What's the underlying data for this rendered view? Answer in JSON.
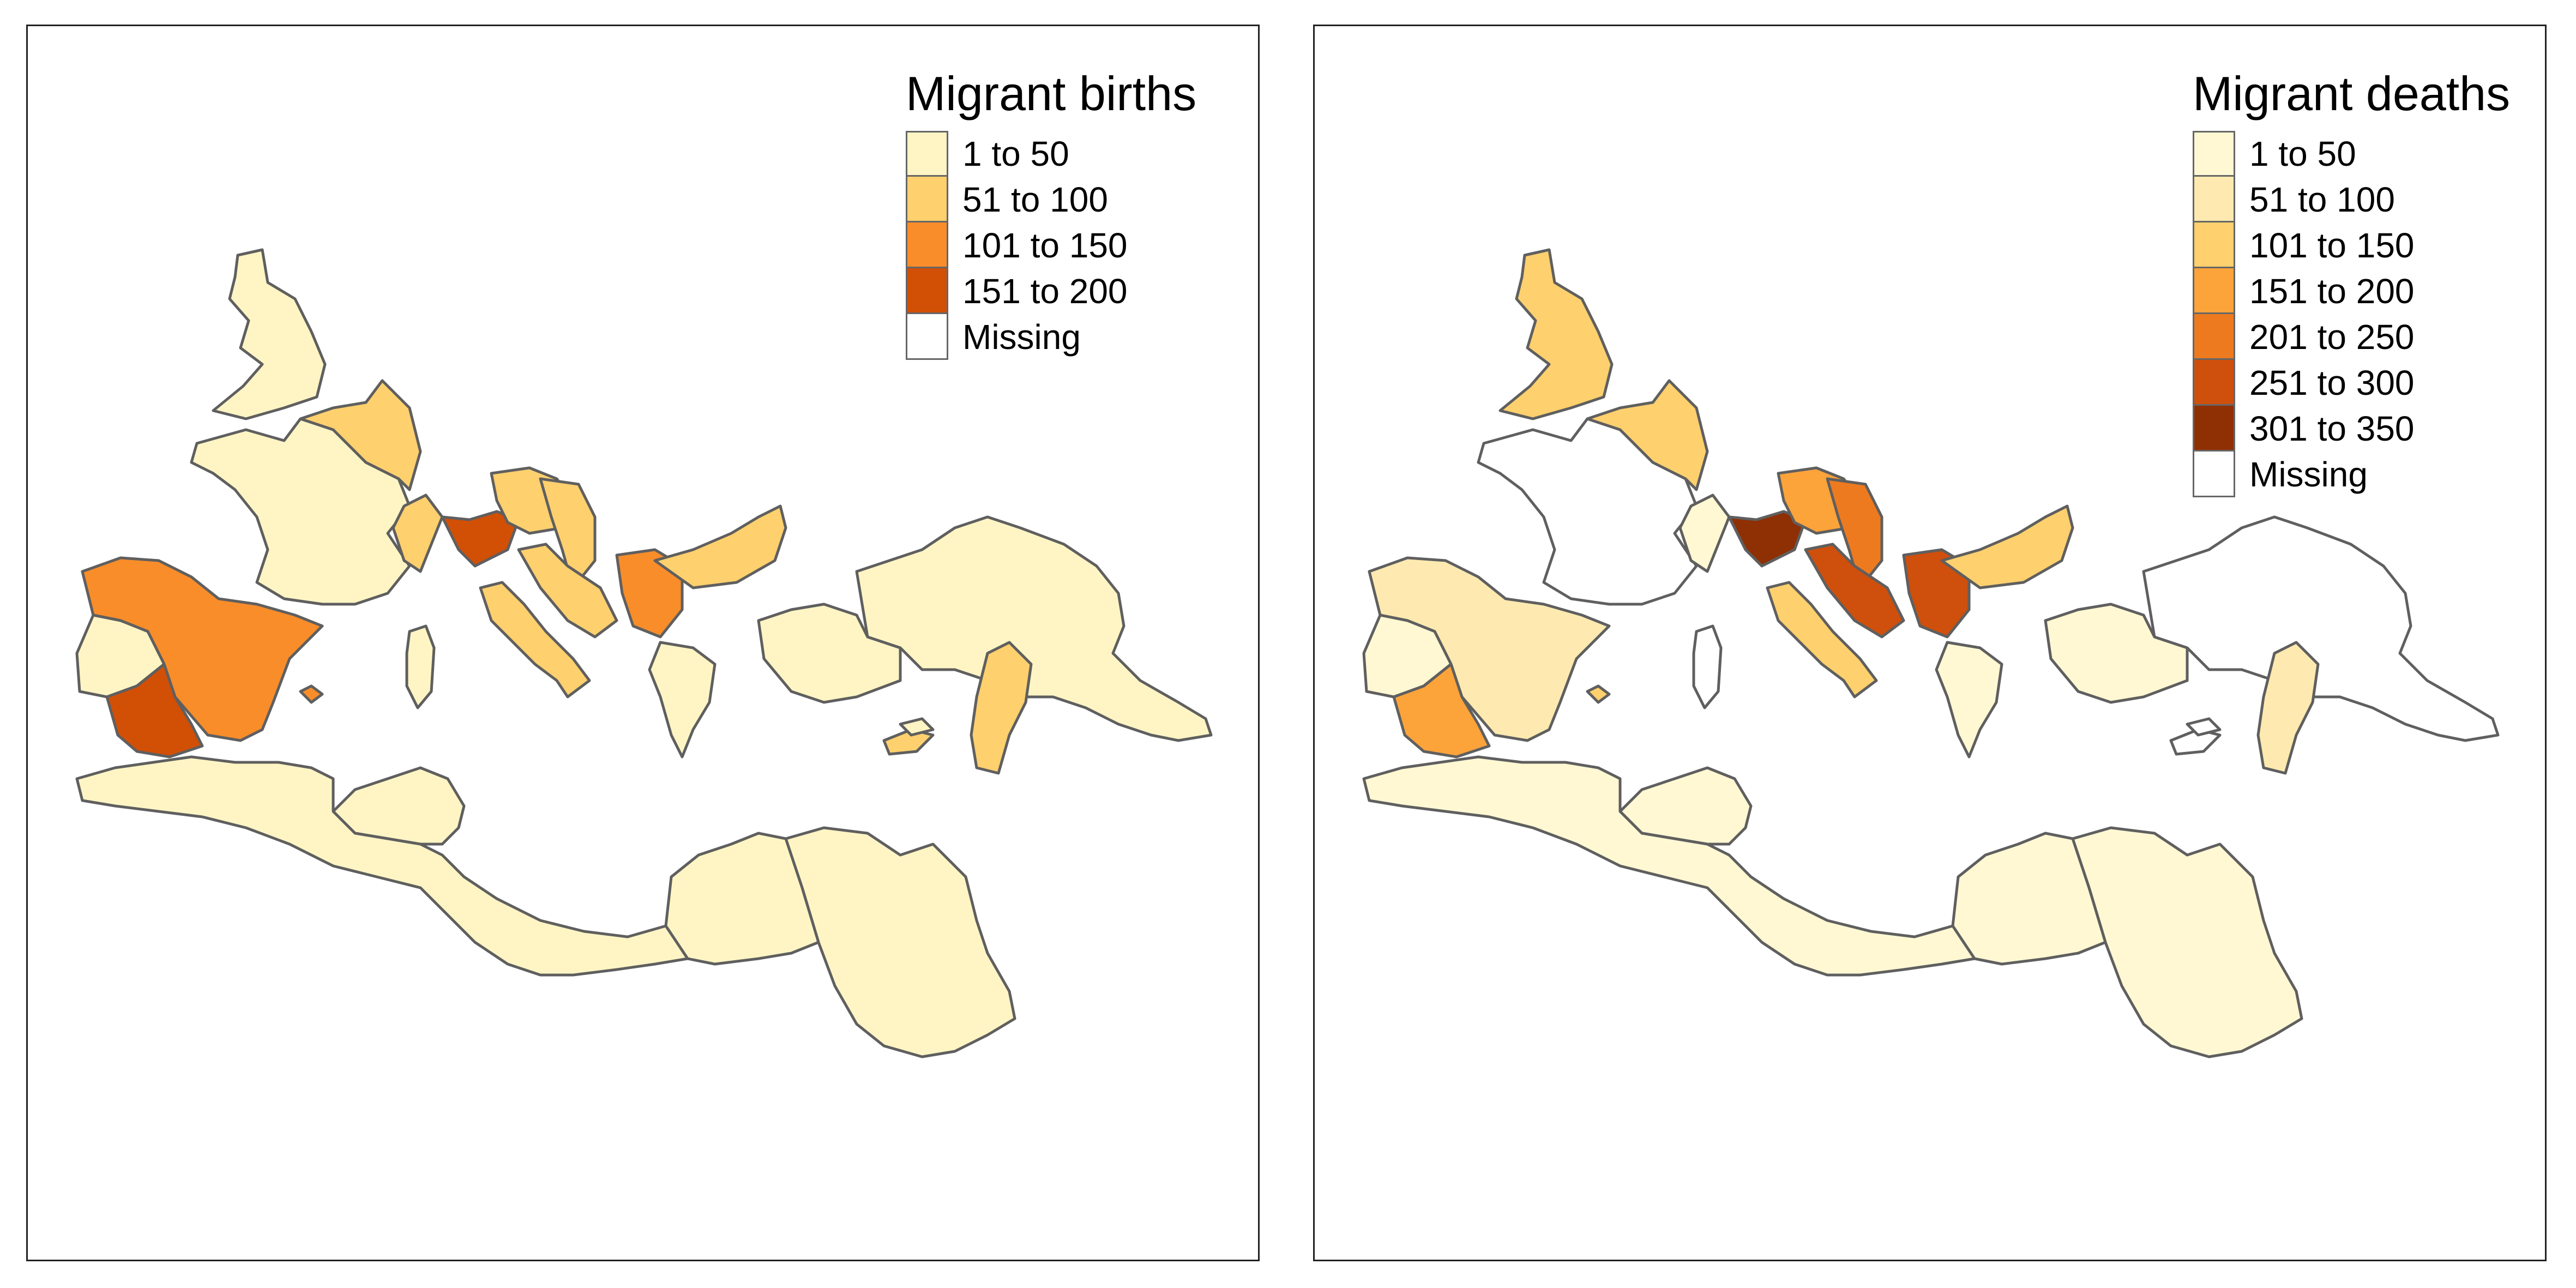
{
  "maps": [
    {
      "id": "births",
      "legend": {
        "title": "Migrant births",
        "items": [
          {
            "label": "1 to 50",
            "color": "#fff5c4"
          },
          {
            "label": "51 to 100",
            "color": "#fed06e"
          },
          {
            "label": "101 to 150",
            "color": "#f88d2a"
          },
          {
            "label": "151 to 200",
            "color": "#d24f06"
          },
          {
            "label": "Missing",
            "color": "#ffffff"
          }
        ]
      },
      "region_classes": {
        "britannia": 0,
        "gallia": 0,
        "germania": 1,
        "hispania_tarraconensis": 2,
        "lusitania": 0,
        "baetica": 3,
        "italia_north": 1,
        "venetia": 3,
        "noricum": 1,
        "pannonia": 1,
        "dalmatia": 1,
        "moesia": 2,
        "dacia_arc": 1,
        "greece": 0,
        "asia": 0,
        "anatolia_east": 0,
        "syria": 1,
        "aegyptus": 0,
        "africa": 0,
        "cyrenaica": 0,
        "mauretania": 0,
        "italia_south": 1,
        "sardinia": 0,
        "baleares": 2,
        "crete": 1,
        "cyprus": 0
      }
    },
    {
      "id": "deaths",
      "legend": {
        "title": "Migrant deaths",
        "items": [
          {
            "label": "1 to 50",
            "color": "#fff8d3"
          },
          {
            "label": "51 to 100",
            "color": "#feeab0"
          },
          {
            "label": "101 to 150",
            "color": "#fed06e"
          },
          {
            "label": "151 to 200",
            "color": "#fca33a"
          },
          {
            "label": "201 to 250",
            "color": "#ee7a1f"
          },
          {
            "label": "251 to 300",
            "color": "#cf4f0c"
          },
          {
            "label": "301 to 350",
            "color": "#8f2f04"
          },
          {
            "label": "Missing",
            "color": "#ffffff"
          }
        ]
      },
      "region_classes": {
        "britannia": 2,
        "gallia": 7,
        "germania": 2,
        "hispania_tarraconensis": 1,
        "lusitania": 0,
        "baetica": 3,
        "italia_north": 0,
        "venetia": 6,
        "noricum": 3,
        "pannonia": 4,
        "dalmatia": 5,
        "moesia": 5,
        "dacia_arc": 2,
        "greece": 0,
        "asia": 0,
        "anatolia_east": 7,
        "syria": 1,
        "aegyptus": 0,
        "africa": 0,
        "cyrenaica": 0,
        "mauretania": 0,
        "italia_south": 2,
        "sardinia": 7,
        "baleares": 2,
        "crete": 7,
        "cyprus": 7
      }
    }
  ]
}
